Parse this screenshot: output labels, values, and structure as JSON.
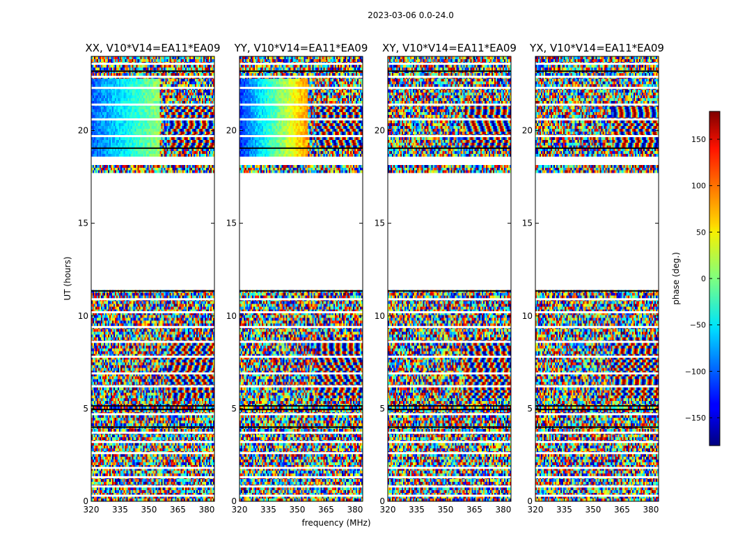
{
  "chart_data": {
    "type": "heatmap",
    "suptitle": "2023-03-06 0.0-24.0",
    "xlabel": "frequency (MHz)",
    "ylabel": "UT (hours)",
    "xlim": [
      320,
      384
    ],
    "ylim": [
      0,
      24
    ],
    "xticks": [
      320,
      335,
      350,
      365,
      380
    ],
    "yticks": [
      0,
      5,
      10,
      15,
      20
    ],
    "panels": [
      {
        "title": "XX, V10*V14=EA11*EA09",
        "polarization": "XX"
      },
      {
        "title": "YY, V10*V14=EA11*EA09",
        "polarization": "YY"
      },
      {
        "title": "XY, V10*V14=EA11*EA09",
        "polarization": "XY"
      },
      {
        "title": "YX, V10*V14=EA11*EA09",
        "polarization": "YX"
      }
    ],
    "colorbar": {
      "label": "phase (deg.)",
      "range": [
        -180,
        180
      ],
      "ticks": [
        -150,
        -100,
        -50,
        0,
        50,
        100,
        150
      ],
      "colormap": "jet"
    },
    "data_gaps_ut_hours": [
      [
        11.4,
        17.7
      ],
      [
        18.2,
        18.6
      ]
    ]
  }
}
